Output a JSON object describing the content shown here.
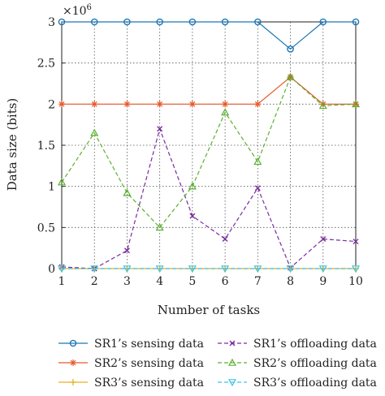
{
  "chart_data": {
    "type": "line",
    "xlabel": "Number of tasks",
    "ylabel": "Data size (bits)",
    "y_multiplier": "×10",
    "y_multiplier_exp": "6",
    "xlim": [
      1,
      10
    ],
    "ylim": [
      0,
      3
    ],
    "x_ticks": [
      "1",
      "2",
      "3",
      "4",
      "5",
      "6",
      "7",
      "8",
      "9",
      "10"
    ],
    "y_ticks": [
      "0",
      "0.5",
      "1",
      "1.5",
      "2",
      "2.5",
      "3"
    ],
    "y_tick_values": [
      0,
      0.5,
      1,
      1.5,
      2,
      2.5,
      3
    ],
    "grid": true,
    "legend_position": "bottom",
    "x": [
      1,
      2,
      3,
      4,
      5,
      6,
      7,
      8,
      9,
      10
    ],
    "series": [
      {
        "name": "SR1’s sensing data",
        "color": "#1f77b4",
        "dash": "solid",
        "marker": "circle",
        "values": [
          3,
          3,
          3,
          3,
          3,
          3,
          3,
          2.67,
          3,
          3
        ]
      },
      {
        "name": "SR2’s sensing data",
        "color": "#e8592a",
        "dash": "solid",
        "marker": "star",
        "values": [
          2,
          2,
          2,
          2,
          2,
          2,
          2,
          2.33,
          2,
          2
        ]
      },
      {
        "name": "SR3’s sensing data",
        "color": "#e8b020",
        "dash": "solid",
        "marker": "plus",
        "values": [
          0,
          0,
          0,
          0,
          0,
          0,
          0,
          0,
          0,
          0
        ]
      },
      {
        "name": "SR1’s offloading data",
        "color": "#7b2d9e",
        "dash": "dashed",
        "marker": "x",
        "values": [
          0.02,
          0,
          0.22,
          1.7,
          0.64,
          0.36,
          0.98,
          0.01,
          0.36,
          0.33
        ]
      },
      {
        "name": "SR2’s offloading data",
        "color": "#5cb030",
        "dash": "dashed",
        "marker": "triangle-up",
        "values": [
          1.05,
          1.65,
          0.92,
          0.5,
          1.0,
          1.9,
          1.3,
          2.33,
          1.98,
          2.0
        ]
      },
      {
        "name": "SR3’s offloading data",
        "color": "#3fc3e3",
        "dash": "dashed",
        "marker": "triangle-down",
        "values": [
          0,
          0,
          0,
          0,
          0,
          0,
          0,
          0,
          0,
          0
        ]
      }
    ]
  }
}
